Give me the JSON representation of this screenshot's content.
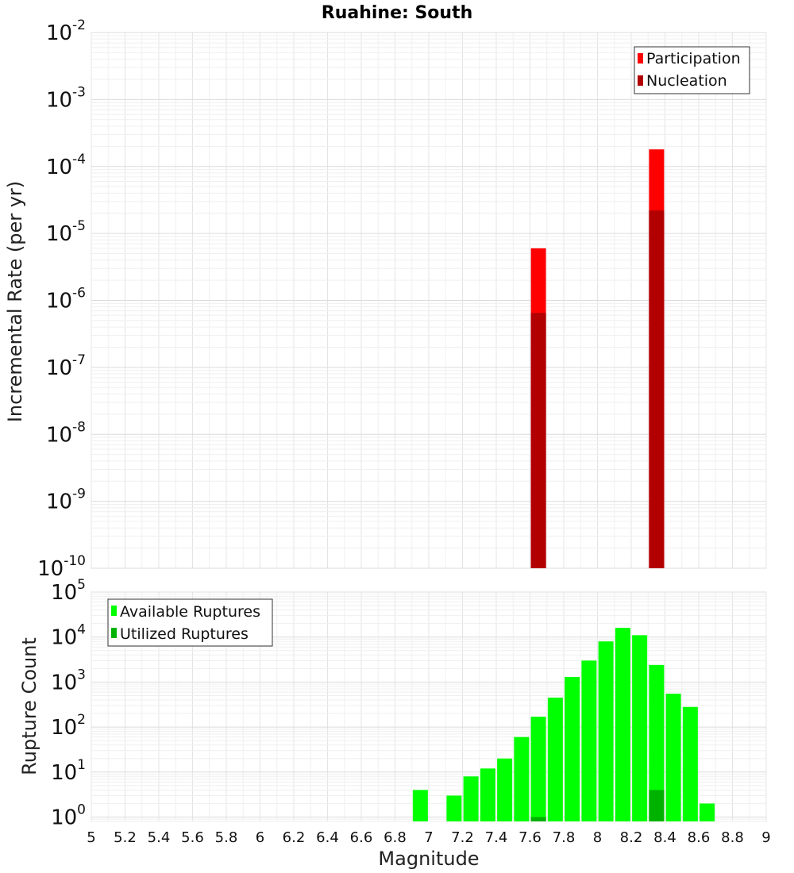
{
  "chart_data": [
    {
      "type": "bar",
      "title": "Ruahine: South",
      "xlabel": "",
      "ylabel": "Incremental Rate (per yr)",
      "y_scale": "log",
      "ylim": [
        1e-10,
        0.01
      ],
      "xlim": [
        5,
        9
      ],
      "grid": true,
      "legend_placement": "top-right",
      "y_ticks": [
        {
          "base": "10",
          "exp": "-10",
          "value": 1e-10
        },
        {
          "base": "10",
          "exp": "-9",
          "value": 1e-09
        },
        {
          "base": "10",
          "exp": "-8",
          "value": 1e-08
        },
        {
          "base": "10",
          "exp": "-7",
          "value": 1e-07
        },
        {
          "base": "10",
          "exp": "-6",
          "value": 1e-06
        },
        {
          "base": "10",
          "exp": "-5",
          "value": 1e-05
        },
        {
          "base": "10",
          "exp": "-4",
          "value": 0.0001
        },
        {
          "base": "10",
          "exp": "-3",
          "value": 0.001
        },
        {
          "base": "10",
          "exp": "-2",
          "value": 0.01
        }
      ],
      "series": [
        {
          "name": "Participation",
          "color": "#ff0000",
          "x": [
            7.65,
            8.35
          ],
          "values": [
            6e-06,
            0.00018
          ]
        },
        {
          "name": "Nucleation",
          "color": "#b20000",
          "x": [
            7.65,
            8.35
          ],
          "values": [
            6.5e-07,
            2.2e-05
          ]
        }
      ]
    },
    {
      "type": "bar",
      "title": "",
      "xlabel": "Magnitude",
      "ylabel": "Rupture Count",
      "y_scale": "log",
      "ylim": [
        0.8,
        100000
      ],
      "xlim": [
        5,
        9
      ],
      "grid": true,
      "legend_placement": "top-left",
      "x_ticks": [
        "5",
        "5.2",
        "5.4",
        "5.6",
        "5.8",
        "6",
        "6.2",
        "6.4",
        "6.6",
        "6.8",
        "7",
        "7.2",
        "7.4",
        "7.6",
        "7.8",
        "8",
        "8.2",
        "8.4",
        "8.6",
        "8.8",
        "9"
      ],
      "y_ticks": [
        {
          "base": "10",
          "exp": "0",
          "value": 1
        },
        {
          "base": "10",
          "exp": "1",
          "value": 10
        },
        {
          "base": "10",
          "exp": "2",
          "value": 100
        },
        {
          "base": "10",
          "exp": "3",
          "value": 1000
        },
        {
          "base": "10",
          "exp": "4",
          "value": 10000
        },
        {
          "base": "10",
          "exp": "5",
          "value": 100000
        }
      ],
      "series": [
        {
          "name": "Available Ruptures",
          "color": "#00ff00",
          "x": [
            6.95,
            7.15,
            7.25,
            7.35,
            7.45,
            7.55,
            7.65,
            7.75,
            7.85,
            7.95,
            8.05,
            8.15,
            8.25,
            8.35,
            8.45,
            8.55,
            8.65
          ],
          "values": [
            4,
            3,
            8,
            12,
            20,
            60,
            170,
            450,
            1300,
            3000,
            8000,
            16000,
            11000,
            2400,
            550,
            280,
            2
          ]
        },
        {
          "name": "Utilized Ruptures",
          "color": "#00b200",
          "x": [
            7.65,
            8.35
          ],
          "values": [
            1,
            4
          ]
        }
      ]
    }
  ]
}
